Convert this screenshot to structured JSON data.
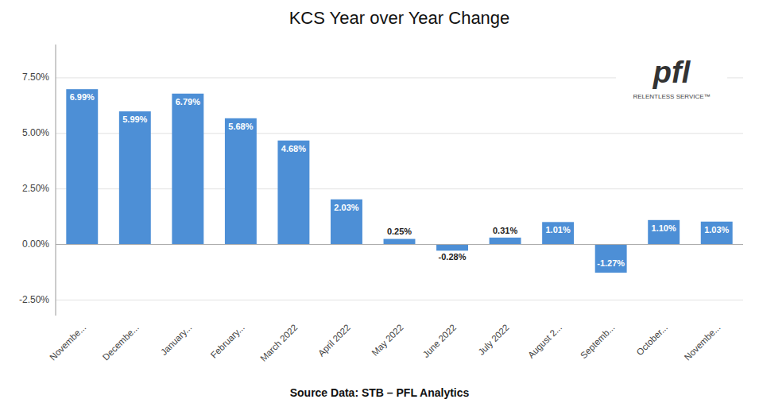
{
  "chart_data": {
    "type": "bar",
    "title": "KCS Year over Year Change",
    "categories": [
      "Novembe...",
      "Decembe...",
      "January...",
      "February...",
      "March 2022",
      "April 2022",
      "May 2022",
      "June 2022",
      "July 2022",
      "August 2...",
      "Septemb...",
      "October...",
      "Novembe..."
    ],
    "values": [
      6.99,
      5.99,
      6.79,
      5.68,
      4.68,
      2.03,
      0.25,
      -0.28,
      0.31,
      1.01,
      -1.27,
      1.1,
      1.03
    ],
    "value_labels": [
      "6.99%",
      "5.99%",
      "6.79%",
      "5.68%",
      "4.68%",
      "2.03%",
      "0.25%",
      "-0.28%",
      "0.31%",
      "1.01%",
      "-1.27%",
      "1.10%",
      "1.03%"
    ],
    "data_labels": true,
    "color": "#4D8FD6",
    "ylim": [
      -3.2,
      9.0
    ],
    "yticks": [
      {
        "value": -2.5,
        "label": "-2.50%"
      },
      {
        "value": 0.0,
        "label": "0.00%"
      },
      {
        "value": 2.5,
        "label": "2.50%"
      },
      {
        "value": 5.0,
        "label": "5.00%"
      },
      {
        "value": 7.5,
        "label": "7.50%"
      }
    ],
    "grid": true,
    "annotations": [
      "Source Data: STB – PFL Analytics",
      "pfl",
      "RELENTLESS SERVICE™"
    ]
  }
}
